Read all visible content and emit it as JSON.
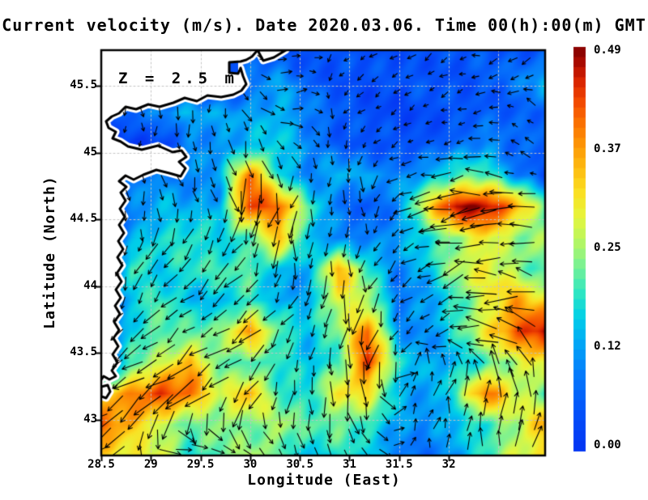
{
  "title": "Current velocity (m/s). Date 2020.03.06. Time 00(h):00(m) GMT",
  "annotation": "Z = 2.5 m",
  "axes": {
    "x_label": "Longitude (East)",
    "y_label": "Latitude (North)",
    "x_ticks": [
      "28.5",
      "29",
      "29.5",
      "30",
      "30.5",
      "31",
      "31.5",
      "32"
    ],
    "y_ticks": [
      "45.5",
      "45",
      "44.5",
      "44",
      "43.5",
      "43"
    ],
    "x_range": [
      28.5,
      32.97
    ],
    "y_range": [
      42.73,
      45.77
    ]
  },
  "colorbar": {
    "tick_labels": [
      "0.49",
      "0.37",
      "0.25",
      "0.12",
      "0.00"
    ],
    "min": 0.0,
    "max": 0.49,
    "steps": 40
  },
  "chart_data": {
    "type": "heatmap",
    "variable": "sea surface current speed with quiver vectors",
    "units": "m/s",
    "value_range": [
      0,
      0.49
    ],
    "lon_range": [
      28.5,
      32.97
    ],
    "lat_range": [
      42.73,
      45.77
    ],
    "speed_grid_units": "hundredths of m/s, 14 rows (north to south) x 16 cols (west to east)",
    "speed_grid": [
      [
        0,
        0,
        0,
        0,
        0,
        6,
        5,
        4,
        4,
        4,
        5,
        5,
        4,
        5,
        5,
        6
      ],
      [
        0,
        0,
        0,
        0,
        0,
        8,
        12,
        6,
        5,
        4,
        4,
        5,
        5,
        6,
        8,
        14
      ],
      [
        0,
        8,
        12,
        14,
        12,
        12,
        15,
        10,
        5,
        4,
        3,
        4,
        4,
        5,
        6,
        8
      ],
      [
        0,
        0,
        0,
        10,
        12,
        14,
        16,
        10,
        6,
        5,
        4,
        4,
        8,
        12,
        6,
        7
      ],
      [
        0,
        8,
        10,
        10,
        12,
        40,
        18,
        10,
        14,
        12,
        10,
        14,
        20,
        20,
        10,
        5
      ],
      [
        0,
        10,
        14,
        12,
        14,
        45,
        40,
        20,
        8,
        6,
        10,
        30,
        48,
        49,
        38,
        20
      ],
      [
        0,
        12,
        18,
        20,
        16,
        18,
        35,
        16,
        10,
        8,
        12,
        18,
        25,
        30,
        22,
        25
      ],
      [
        0,
        22,
        15,
        18,
        20,
        22,
        15,
        12,
        35,
        20,
        10,
        15,
        25,
        30,
        25,
        18
      ],
      [
        0,
        15,
        20,
        15,
        15,
        18,
        12,
        14,
        30,
        25,
        8,
        12,
        20,
        28,
        35,
        30
      ],
      [
        0,
        18,
        22,
        20,
        22,
        38,
        22,
        15,
        22,
        40,
        12,
        10,
        18,
        30,
        42,
        49
      ],
      [
        0,
        20,
        25,
        35,
        22,
        20,
        18,
        15,
        20,
        45,
        18,
        12,
        15,
        20,
        25,
        30
      ],
      [
        30,
        38,
        45,
        40,
        25,
        35,
        20,
        18,
        30,
        30,
        15,
        12,
        20,
        40,
        28,
        22
      ],
      [
        42,
        35,
        25,
        20,
        25,
        22,
        25,
        20,
        22,
        20,
        12,
        10,
        15,
        20,
        25,
        35
      ],
      [
        30,
        28,
        30,
        18,
        20,
        25,
        22,
        15,
        18,
        15,
        10,
        8,
        12,
        18,
        28,
        30
      ]
    ],
    "direction_grid_uv": [
      [
        [
          0,
          0
        ],
        [
          0,
          0
        ],
        [
          0.2,
          0.8
        ],
        [
          0.8,
          -0.3
        ],
        [
          -0.6,
          0.3
        ],
        [
          -0.7,
          0.5
        ],
        [
          -0.8,
          0.2
        ],
        [
          -0.6,
          0.5
        ]
      ],
      [
        [
          0,
          0
        ],
        [
          0,
          1
        ],
        [
          0.1,
          1
        ],
        [
          1,
          0.1
        ],
        [
          -0.6,
          0.6
        ],
        [
          -0.7,
          0.4
        ],
        [
          -0.9,
          0.2
        ],
        [
          -0.5,
          -0.6
        ]
      ],
      [
        [
          0,
          0
        ],
        [
          0.2,
          1
        ],
        [
          0.3,
          0.95
        ],
        [
          -0.3,
          0.9
        ],
        [
          0.2,
          0.6
        ],
        [
          -1,
          0.15
        ],
        [
          -1,
          0.1
        ],
        [
          -0.9,
          -0.2
        ]
      ],
      [
        [
          0.1,
          1
        ],
        [
          -0.5,
          0.85
        ],
        [
          -0.7,
          0.7
        ],
        [
          0,
          1
        ],
        [
          -0.05,
          1
        ],
        [
          -0.8,
          0.4
        ],
        [
          -0.9,
          0.2
        ],
        [
          -0.8,
          -0.3
        ]
      ],
      [
        [
          -0.4,
          0.9
        ],
        [
          -0.8,
          0.6
        ],
        [
          -0.8,
          0.6
        ],
        [
          -0.5,
          0.7
        ],
        [
          0,
          1
        ],
        [
          -0.6,
          0.5
        ],
        [
          -1,
          0.1
        ],
        [
          -0.9,
          -0.35
        ]
      ],
      [
        [
          -0.7,
          0.6
        ],
        [
          -0.9,
          0.5
        ],
        [
          -0.7,
          0.6
        ],
        [
          -0.2,
          0.9
        ],
        [
          0,
          1
        ],
        [
          0.4,
          -0.7
        ],
        [
          0.1,
          -0.9
        ],
        [
          -0.2,
          -0.9
        ]
      ],
      [
        [
          -0.9,
          0.3
        ],
        [
          0.9,
          0.2
        ],
        [
          0.9,
          0.1
        ],
        [
          0.3,
          0.8
        ],
        [
          0.4,
          0.8
        ],
        [
          0.2,
          -0.8
        ],
        [
          0,
          -1
        ],
        [
          0.4,
          -0.8
        ]
      ]
    ],
    "colormap_stops": [
      [
        0.0,
        "#0433f2"
      ],
      [
        0.1,
        "#0453fa"
      ],
      [
        0.2,
        "#0580fb"
      ],
      [
        0.27,
        "#02aaf5"
      ],
      [
        0.33,
        "#00cfe8"
      ],
      [
        0.39,
        "#2ee6c2"
      ],
      [
        0.46,
        "#7cf292"
      ],
      [
        0.52,
        "#b8f760"
      ],
      [
        0.58,
        "#e6f53b"
      ],
      [
        0.64,
        "#fbdf22"
      ],
      [
        0.7,
        "#fdbb10"
      ],
      [
        0.76,
        "#fd9405"
      ],
      [
        0.82,
        "#fa6b01"
      ],
      [
        0.87,
        "#f04400"
      ],
      [
        0.92,
        "#d62100"
      ],
      [
        0.96,
        "#ab0b00"
      ],
      [
        1.0,
        "#7f0000"
      ]
    ],
    "gridlines": {
      "lon": [
        29,
        29.5,
        30,
        30.5,
        31,
        31.5,
        32,
        32.5
      ],
      "lat": [
        43,
        43.5,
        44,
        44.5,
        45,
        45.5
      ]
    },
    "land": {
      "main_coast": [
        [
          193,
          0
        ],
        [
          186,
          8
        ],
        [
          179,
          12
        ],
        [
          172,
          14
        ],
        [
          158,
          15
        ],
        [
          158,
          28
        ],
        [
          169,
          29
        ],
        [
          172,
          22
        ],
        [
          175,
          32
        ],
        [
          179,
          42
        ],
        [
          173,
          50
        ],
        [
          163,
          55
        ],
        [
          148,
          58
        ],
        [
          131,
          56
        ],
        [
          118,
          63
        ],
        [
          103,
          59
        ],
        [
          89,
          65
        ],
        [
          72,
          70
        ],
        [
          58,
          67
        ],
        [
          43,
          73
        ],
        [
          30,
          70
        ],
        [
          22,
          78
        ],
        [
          13,
          82
        ],
        [
          6,
          88
        ],
        [
          9,
          96
        ],
        [
          18,
          101
        ],
        [
          14,
          109
        ],
        [
          24,
          113
        ],
        [
          33,
          119
        ],
        [
          50,
          123
        ],
        [
          70,
          118
        ],
        [
          88,
          126
        ],
        [
          99,
          124
        ],
        [
          105,
          132
        ],
        [
          96,
          138
        ],
        [
          104,
          146
        ],
        [
          98,
          156
        ],
        [
          84,
          152
        ],
        [
          68,
          148
        ],
        [
          52,
          154
        ],
        [
          40,
          160
        ],
        [
          30,
          155
        ],
        [
          22,
          162
        ],
        [
          31,
          169
        ],
        [
          24,
          176
        ],
        [
          30,
          186
        ],
        [
          23,
          196
        ],
        [
          29,
          206
        ],
        [
          22,
          216
        ],
        [
          28,
          226
        ],
        [
          21,
          236
        ],
        [
          27,
          246
        ],
        [
          20,
          256
        ],
        [
          26,
          266
        ],
        [
          19,
          276
        ],
        [
          25,
          286
        ],
        [
          18,
          296
        ],
        [
          24,
          306
        ],
        [
          17,
          316
        ],
        [
          23,
          326
        ],
        [
          16,
          336
        ],
        [
          22,
          346
        ],
        [
          15,
          356
        ],
        [
          21,
          366
        ],
        [
          14,
          376
        ],
        [
          20,
          386
        ],
        [
          13,
          396
        ],
        [
          18,
          403
        ],
        [
          10,
          407
        ],
        [
          3,
          403
        ],
        [
          0,
          407
        ]
      ],
      "top_right_piece": [
        [
          193,
          0
        ],
        [
          228,
          0
        ],
        [
          213,
          9
        ],
        [
          200,
          13
        ]
      ],
      "islands": [
        [
          [
            0,
            416
          ],
          [
            8,
            414
          ],
          [
            11,
            422
          ],
          [
            6,
            430
          ],
          [
            0,
            428
          ]
        ]
      ],
      "bay_rect": [
        158,
        15,
        11,
        13
      ]
    }
  }
}
